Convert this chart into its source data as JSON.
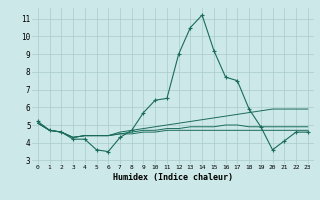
{
  "xlabel": "Humidex (Indice chaleur)",
  "bg_color": "#cce8e8",
  "grid_color": "#aacccc",
  "line_color": "#1a6b5a",
  "xlim": [
    -0.5,
    23.5
  ],
  "ylim": [
    2.8,
    11.6
  ],
  "yticks": [
    3,
    4,
    5,
    6,
    7,
    8,
    9,
    10,
    11
  ],
  "xticks": [
    0,
    1,
    2,
    3,
    4,
    5,
    6,
    7,
    8,
    9,
    10,
    11,
    12,
    13,
    14,
    15,
    16,
    17,
    18,
    19,
    20,
    21,
    22,
    23
  ],
  "series": [
    [
      5.2,
      4.7,
      4.6,
      4.2,
      4.2,
      3.6,
      3.5,
      4.3,
      4.7,
      5.7,
      6.4,
      6.5,
      9.0,
      10.5,
      11.2,
      9.2,
      7.7,
      7.5,
      5.9,
      4.9,
      3.6,
      4.1,
      4.6,
      4.6
    ],
    [
      5.1,
      4.7,
      4.6,
      4.3,
      4.4,
      4.4,
      4.4,
      4.6,
      4.7,
      4.8,
      4.9,
      5.0,
      5.1,
      5.2,
      5.3,
      5.4,
      5.5,
      5.6,
      5.7,
      5.8,
      5.9,
      5.9,
      5.9,
      5.9
    ],
    [
      5.1,
      4.7,
      4.6,
      4.3,
      4.4,
      4.4,
      4.4,
      4.5,
      4.6,
      4.7,
      4.7,
      4.8,
      4.8,
      4.9,
      4.9,
      4.9,
      5.0,
      5.0,
      4.9,
      4.9,
      4.9,
      4.9,
      4.9,
      4.9
    ],
    [
      5.1,
      4.7,
      4.6,
      4.3,
      4.4,
      4.4,
      4.4,
      4.5,
      4.5,
      4.6,
      4.6,
      4.7,
      4.7,
      4.7,
      4.7,
      4.7,
      4.7,
      4.7,
      4.7,
      4.7,
      4.7,
      4.7,
      4.7,
      4.7
    ]
  ]
}
